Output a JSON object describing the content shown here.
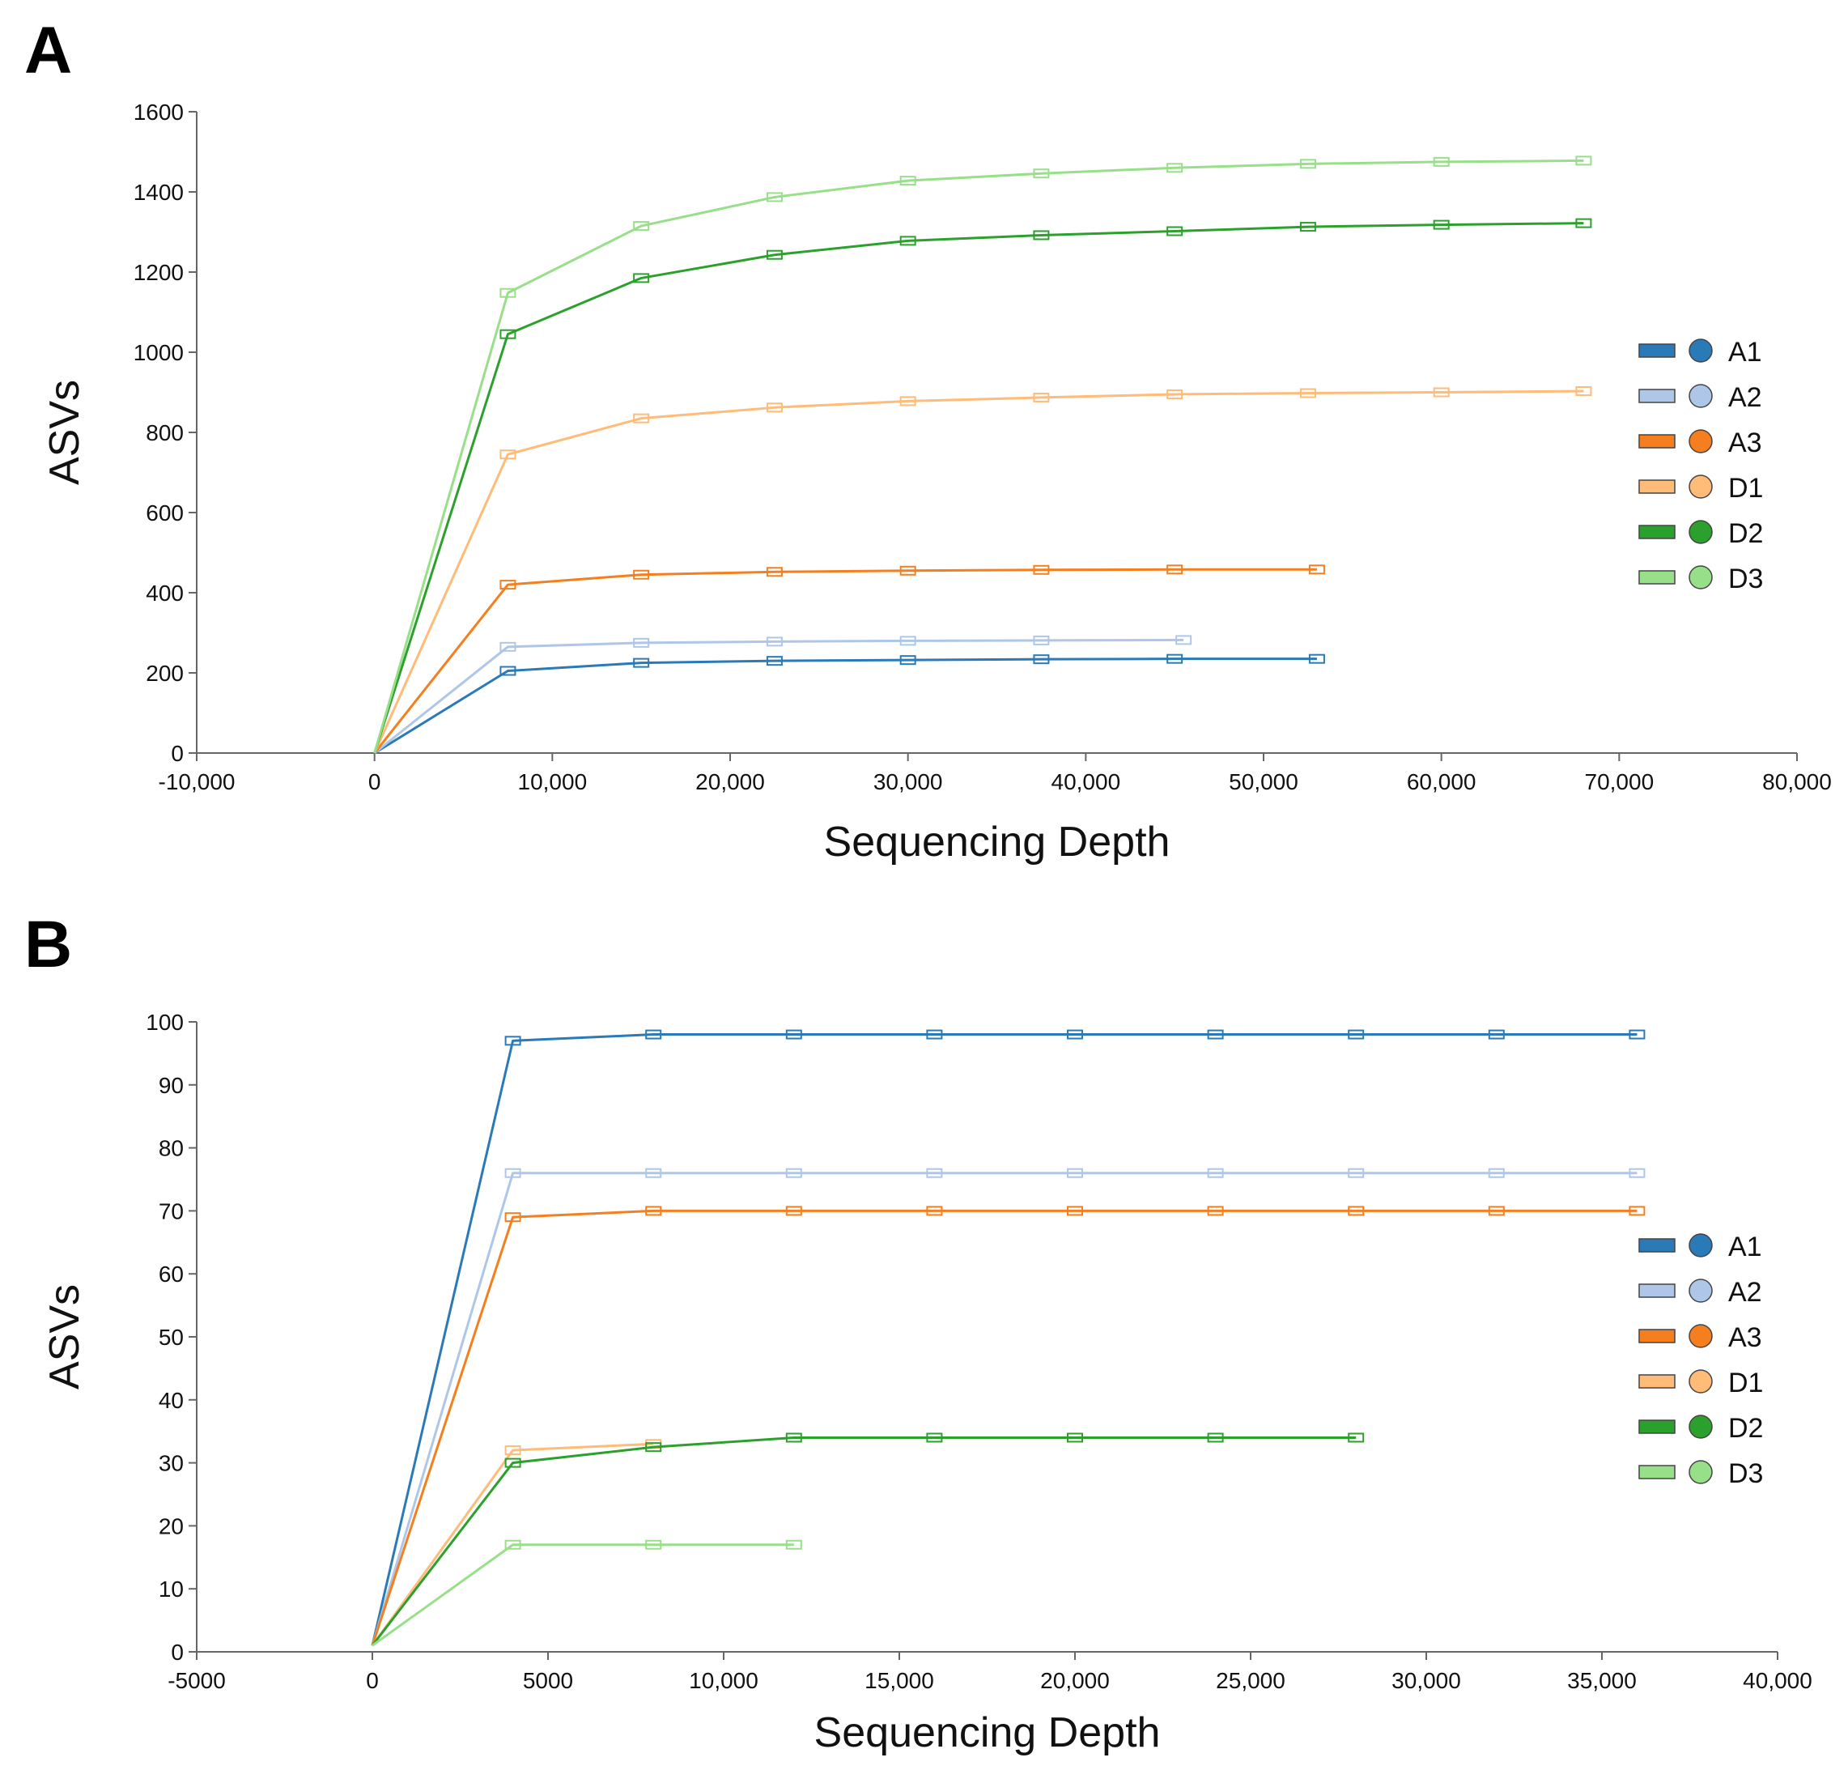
{
  "panels": {
    "a_label": "A",
    "b_label": "B"
  },
  "colors": {
    "A1": "#2a7ab8",
    "A2": "#aec7e8",
    "A3": "#f57f1e",
    "D1": "#ffbb78",
    "D2": "#2ca02c",
    "D3": "#98df8a",
    "axis": "#666666"
  },
  "chart_data": [
    {
      "type": "line",
      "title": "",
      "xlabel": "Sequencing Depth",
      "ylabel": "ASVs",
      "xlim": [
        -10000,
        80000
      ],
      "ylim": [
        0,
        1600
      ],
      "xticks": [
        -10000,
        0,
        10000,
        20000,
        30000,
        40000,
        50000,
        60000,
        70000,
        80000
      ],
      "xtick_labels": [
        "-10,000",
        "0",
        "10,000",
        "20,000",
        "30,000",
        "40,000",
        "50,000",
        "60,000",
        "70,000",
        "80,000"
      ],
      "yticks": [
        0,
        200,
        400,
        600,
        800,
        1000,
        1200,
        1400,
        1600
      ],
      "ytick_labels": [
        "0",
        "200",
        "400",
        "600",
        "800",
        "1000",
        "1200",
        "1400",
        "1600"
      ],
      "legend_position": "right",
      "series": [
        {
          "name": "A1",
          "x": [
            0,
            7500,
            15000,
            22500,
            30000,
            37500,
            45000,
            53000
          ],
          "y": [
            0,
            205,
            225,
            230,
            232,
            234,
            235,
            235
          ]
        },
        {
          "name": "A2",
          "x": [
            0,
            7500,
            15000,
            22500,
            30000,
            37500,
            45500
          ],
          "y": [
            0,
            265,
            275,
            278,
            280,
            281,
            282
          ]
        },
        {
          "name": "A3",
          "x": [
            0,
            7500,
            15000,
            22500,
            30000,
            37500,
            45000,
            53000
          ],
          "y": [
            0,
            420,
            445,
            452,
            455,
            457,
            458,
            458
          ]
        },
        {
          "name": "D1",
          "x": [
            0,
            7500,
            15000,
            22500,
            30000,
            37500,
            45000,
            52500,
            60000,
            68000
          ],
          "y": [
            0,
            745,
            835,
            862,
            878,
            887,
            895,
            898,
            900,
            903
          ]
        },
        {
          "name": "D2",
          "x": [
            0,
            7500,
            15000,
            22500,
            30000,
            37500,
            45000,
            52500,
            60000,
            68000
          ],
          "y": [
            0,
            1045,
            1185,
            1243,
            1278,
            1292,
            1302,
            1313,
            1318,
            1322
          ]
        },
        {
          "name": "D3",
          "x": [
            0,
            7500,
            15000,
            22500,
            30000,
            37500,
            45000,
            52500,
            60000,
            68000
          ],
          "y": [
            0,
            1148,
            1315,
            1387,
            1428,
            1446,
            1460,
            1470,
            1475,
            1478
          ]
        }
      ]
    },
    {
      "type": "line",
      "title": "",
      "xlabel": "Sequencing Depth",
      "ylabel": "ASVs",
      "xlim": [
        -5000,
        40000
      ],
      "ylim": [
        0,
        100
      ],
      "xticks": [
        -5000,
        0,
        5000,
        10000,
        15000,
        20000,
        25000,
        30000,
        35000,
        40000
      ],
      "xtick_labels": [
        "-5000",
        "0",
        "5000",
        "10,000",
        "15,000",
        "20,000",
        "25,000",
        "30,000",
        "35,000",
        "40,000"
      ],
      "yticks": [
        0,
        10,
        20,
        30,
        40,
        50,
        60,
        70,
        80,
        90,
        100
      ],
      "ytick_labels": [
        "0",
        "10",
        "20",
        "30",
        "40",
        "50",
        "60",
        "70",
        "80",
        "90",
        "100"
      ],
      "legend_position": "right",
      "series": [
        {
          "name": "A1",
          "x": [
            0,
            4000,
            8000,
            12000,
            16000,
            20000,
            24000,
            28000,
            32000,
            36000
          ],
          "y": [
            1,
            97,
            98,
            98,
            98,
            98,
            98,
            98,
            98,
            98
          ]
        },
        {
          "name": "A2",
          "x": [
            0,
            4000,
            8000,
            12000,
            16000,
            20000,
            24000,
            28000,
            32000,
            36000
          ],
          "y": [
            1,
            76,
            76,
            76,
            76,
            76,
            76,
            76,
            76,
            76
          ]
        },
        {
          "name": "A3",
          "x": [
            0,
            4000,
            8000,
            12000,
            16000,
            20000,
            24000,
            28000,
            32000,
            36000
          ],
          "y": [
            1,
            69,
            70,
            70,
            70,
            70,
            70,
            70,
            70,
            70
          ]
        },
        {
          "name": "D1",
          "x": [
            0,
            4000,
            8000
          ],
          "y": [
            1,
            32,
            33
          ]
        },
        {
          "name": "D2",
          "x": [
            0,
            4000,
            8000,
            12000,
            16000,
            20000,
            24000,
            28000
          ],
          "y": [
            1,
            30,
            32.5,
            34,
            34,
            34,
            34,
            34
          ]
        },
        {
          "name": "D3",
          "x": [
            0,
            4000,
            8000,
            12000
          ],
          "y": [
            1,
            17,
            17,
            17
          ]
        }
      ]
    }
  ]
}
